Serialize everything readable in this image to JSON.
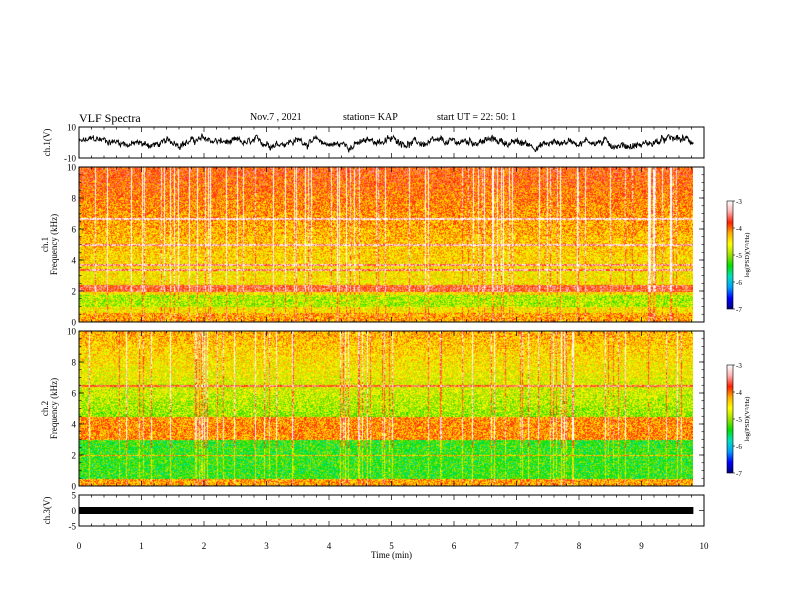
{
  "header": {
    "title": "VLF Spectra",
    "date": "Nov.7 , 2021",
    "station": "station= KAP",
    "start": "start UT = 22: 50: 1"
  },
  "colors": {
    "colormap": [
      "#000080",
      "#0000ff",
      "#00a0ff",
      "#00e0c0",
      "#00e000",
      "#a0e000",
      "#ffff00",
      "#ffb000",
      "#ff2000",
      "#ffb0b0",
      "#ffffff"
    ],
    "trace": "#000000"
  },
  "chart_data": [
    {
      "type": "line",
      "name": "ch1-waveform",
      "ylabel": "ch.1(V)",
      "ylim": [
        -10,
        10
      ],
      "yticks": [
        "10",
        "-10"
      ],
      "xlim": [
        0,
        10
      ]
    },
    {
      "type": "heatmap",
      "name": "ch1-spectrogram",
      "ylabel_channel": "ch.1",
      "ylabel": "Frequency (kHz)",
      "ylim": [
        0,
        10
      ],
      "yticks": [
        "0",
        "2",
        "4",
        "6",
        "8",
        "10"
      ],
      "xlim": [
        0,
        10
      ],
      "data_extent_min": 9.83,
      "colorbar": {
        "label": "log(PSD)(V²/Hz)",
        "ticks": [
          "-3",
          "-4",
          "-5",
          "-6",
          "-7"
        ],
        "range": [
          -7,
          -3
        ]
      },
      "features": {
        "strong_band_khz": [
          2.0,
          2.4
        ],
        "weak_band_khz": [
          1.0,
          1.8
        ],
        "lines_khz": [
          3.4,
          3.7,
          5.0,
          6.7
        ]
      }
    },
    {
      "type": "heatmap",
      "name": "ch2-spectrogram",
      "ylabel_channel": "ch.2",
      "ylabel": "Frequency (kHz)",
      "ylim": [
        0,
        10
      ],
      "yticks": [
        "0",
        "2",
        "4",
        "6",
        "8",
        "10"
      ],
      "xlim": [
        0,
        10
      ],
      "data_extent_min": 9.83,
      "colorbar": {
        "label": "log(PSD)(V²/Hz)",
        "ticks": [
          "-3",
          "-4",
          "-5",
          "-6",
          "-7"
        ],
        "range": [
          -7,
          -3
        ]
      },
      "features": {
        "strong_band_khz": [
          3.0,
          4.5
        ],
        "weak_band_khz": [
          0.5,
          3.0
        ],
        "lines_khz": [
          2.0,
          6.5
        ]
      }
    },
    {
      "type": "line",
      "name": "ch3-waveform",
      "ylabel": "ch.3(V)",
      "ylim": [
        -5,
        5
      ],
      "yticks": [
        "5",
        "0",
        "-5"
      ],
      "xlim": [
        0,
        10
      ],
      "level_v": 0,
      "xlabel": "Time (min)",
      "xticks": [
        "0",
        "1",
        "2",
        "3",
        "4",
        "5",
        "6",
        "7",
        "8",
        "9",
        "10"
      ]
    }
  ]
}
